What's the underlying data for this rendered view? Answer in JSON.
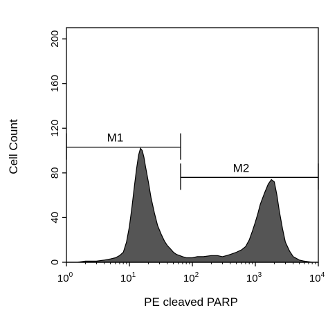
{
  "chart_data": {
    "type": "area",
    "title": "",
    "xlabel": "PE cleaved PARP",
    "ylabel": "Cell Count",
    "x_scale": "log",
    "xlim": [
      1,
      10000
    ],
    "ylim": [
      0,
      210
    ],
    "x_ticks": [
      {
        "value": 1,
        "base": "10",
        "exp": "0"
      },
      {
        "value": 10,
        "base": "10",
        "exp": "1"
      },
      {
        "value": 100,
        "base": "10",
        "exp": "2"
      },
      {
        "value": 1000,
        "base": "10",
        "exp": "3"
      },
      {
        "value": 10000,
        "base": "10",
        "exp": "4"
      }
    ],
    "y_ticks": [
      0,
      40,
      80,
      120,
      160,
      200
    ],
    "fill_color": "#555555",
    "grid": false,
    "legend": "none",
    "series": [
      {
        "x": [
          1,
          1.5,
          2,
          3,
          4,
          5,
          6,
          7,
          8,
          9,
          10,
          11,
          12,
          13,
          14,
          15,
          16,
          17,
          18,
          20,
          22,
          25,
          28,
          32,
          36,
          40,
          45,
          50,
          56,
          63,
          70,
          80,
          90,
          100,
          120,
          150,
          200,
          250,
          300,
          350,
          400,
          450,
          500,
          600,
          700,
          800,
          900,
          1000,
          1100,
          1200,
          1400,
          1600,
          1800,
          2000,
          2200,
          2400,
          2700,
          3000,
          3500,
          4000,
          5000,
          6000,
          8000,
          10000
        ],
        "y": [
          0,
          0,
          1,
          1,
          2,
          3,
          4,
          6,
          9,
          18,
          32,
          50,
          68,
          84,
          96,
          102,
          100,
          94,
          86,
          72,
          58,
          44,
          33,
          25,
          19,
          15,
          12,
          9,
          7,
          6,
          5,
          4,
          4,
          4,
          5,
          5,
          6,
          6,
          5,
          6,
          7,
          8,
          9,
          11,
          14,
          20,
          28,
          36,
          44,
          52,
          62,
          70,
          74,
          72,
          60,
          46,
          30,
          18,
          10,
          5,
          2,
          1,
          0,
          0
        ]
      }
    ],
    "markers": [
      {
        "label": "M1",
        "x_start": 1,
        "x_end": 65,
        "y": 103
      },
      {
        "label": "M2",
        "x_start": 65,
        "x_end": 10000,
        "y": 76
      }
    ]
  }
}
